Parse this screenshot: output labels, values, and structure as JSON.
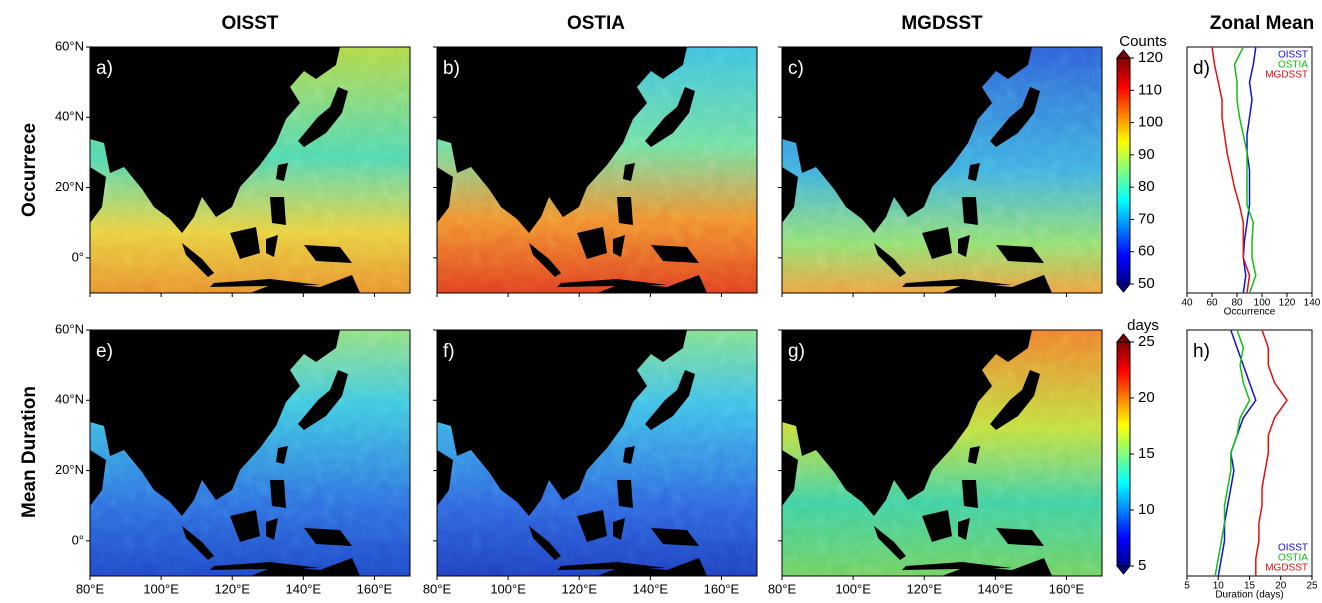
{
  "columns": [
    "OISST",
    "OSTIA",
    "MGDSST",
    "Zonal Mean"
  ],
  "rows": [
    "Occurrece",
    "Mean Duration"
  ],
  "panel_labels": [
    "a)",
    "b)",
    "c)",
    "d)",
    "e)",
    "f)",
    "g)",
    "h)"
  ],
  "map_axes": {
    "xlim": [
      80,
      170
    ],
    "ylim": [
      -10,
      60
    ],
    "xticks": [
      {
        "value": 80,
        "label": "80°E"
      },
      {
        "value": 100,
        "label": "100°E"
      },
      {
        "value": 120,
        "label": "120°E"
      },
      {
        "value": 140,
        "label": "140°E"
      },
      {
        "value": 160,
        "label": "160°E"
      }
    ],
    "yticks": [
      {
        "value": 60,
        "label": "60°N"
      },
      {
        "value": 40,
        "label": "40°N"
      },
      {
        "value": 20,
        "label": "20°N"
      },
      {
        "value": 0,
        "label": "0°"
      }
    ]
  },
  "chart_data": [
    {
      "type": "colorbar",
      "title": "Counts",
      "ylim": [
        50,
        120
      ],
      "yticks": [
        50,
        60,
        70,
        80,
        90,
        100,
        110,
        120
      ]
    },
    {
      "type": "colorbar",
      "title": "days",
      "ylim": [
        5,
        25
      ],
      "yticks": [
        5,
        10,
        15,
        20,
        25
      ]
    },
    {
      "type": "line",
      "xlabel": "Occurrence",
      "xlim": [
        40,
        140
      ],
      "xticks": [
        40,
        60,
        80,
        100,
        120,
        140
      ],
      "ylim": [
        -10,
        60
      ],
      "legend": "top-right",
      "y": [
        -10,
        -5,
        0,
        5,
        10,
        15,
        20,
        25,
        30,
        35,
        40,
        45,
        50,
        55,
        60
      ],
      "series": [
        {
          "name": "OISST",
          "color": "#1010e0",
          "values": [
            85,
            87,
            85,
            86,
            88,
            90,
            90,
            90,
            88,
            88,
            90,
            92,
            90,
            93,
            95
          ]
        },
        {
          "name": "OSTIA",
          "color": "#10c010",
          "values": [
            90,
            95,
            92,
            92,
            93,
            88,
            88,
            88,
            88,
            85,
            82,
            80,
            80,
            78,
            85
          ]
        },
        {
          "name": "MGDSST",
          "color": "#e01010",
          "values": [
            88,
            90,
            85,
            85,
            85,
            82,
            78,
            75,
            72,
            70,
            68,
            68,
            65,
            62,
            60
          ]
        }
      ]
    },
    {
      "type": "line",
      "xlabel": "Duration (days)",
      "xlim": [
        5,
        25
      ],
      "xticks": [
        5,
        10,
        15,
        20,
        25
      ],
      "ylim": [
        -10,
        60
      ],
      "legend": "bottom-right",
      "y": [
        -10,
        -5,
        0,
        5,
        10,
        15,
        20,
        25,
        30,
        35,
        40,
        45,
        50,
        55,
        60
      ],
      "series": [
        {
          "name": "OISST",
          "color": "#1010e0",
          "values": [
            10,
            10.5,
            11,
            11,
            11.5,
            12,
            12.5,
            12,
            13,
            14,
            16,
            15,
            14,
            13,
            12
          ]
        },
        {
          "name": "OSTIA",
          "color": "#10c010",
          "values": [
            9.5,
            10,
            10.5,
            11,
            11,
            11.5,
            12,
            12,
            13,
            13.5,
            15,
            14,
            13.5,
            14,
            13
          ]
        },
        {
          "name": "MGDSST",
          "color": "#e01010",
          "values": [
            16,
            16,
            16.5,
            16.5,
            17,
            17,
            17.5,
            18,
            18,
            19,
            21,
            19,
            18,
            18,
            17
          ]
        }
      ]
    }
  ]
}
